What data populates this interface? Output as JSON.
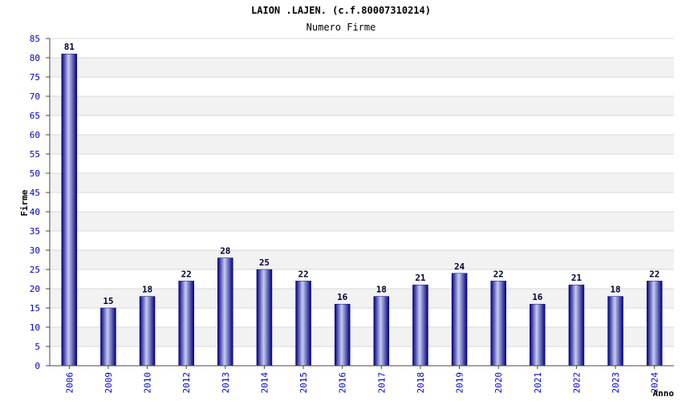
{
  "chart_data": {
    "type": "bar",
    "title": "LAION .LAJEN. (c.f.80007310214)",
    "subtitle": "Numero Firme",
    "xlabel": "Anno",
    "ylabel": "Firme",
    "ylim": [
      0,
      85
    ],
    "ytick_step": 5,
    "grid": true,
    "categories": [
      "2006",
      "2009",
      "2010",
      "2012",
      "2013",
      "2014",
      "2015",
      "2016",
      "2017",
      "2018",
      "2019",
      "2020",
      "2021",
      "2022",
      "2023",
      "2024"
    ],
    "values": [
      81,
      15,
      18,
      22,
      28,
      25,
      22,
      16,
      18,
      21,
      24,
      22,
      16,
      21,
      18,
      22
    ]
  },
  "colors": {
    "bar_dark": "#000080",
    "bar_light": "#c8ccf0",
    "tick_text": "#0000cc",
    "band": "#f2f2f2",
    "grid": "#d8d8d8"
  }
}
